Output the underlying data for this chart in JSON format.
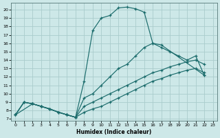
{
  "xlabel": "Humidex (Indice chaleur)",
  "xlim": [
    -0.5,
    23.5
  ],
  "ylim": [
    6.8,
    20.8
  ],
  "xticks": [
    0,
    1,
    2,
    3,
    4,
    5,
    6,
    7,
    8,
    9,
    10,
    11,
    12,
    13,
    14,
    15,
    16,
    17,
    18,
    19,
    20,
    21,
    22,
    23
  ],
  "yticks": [
    7,
    8,
    9,
    10,
    11,
    12,
    13,
    14,
    15,
    16,
    17,
    18,
    19,
    20
  ],
  "bg_color": "#cde8e8",
  "line_color": "#1a6b6b",
  "grid_color": "#aacccc",
  "curves": [
    {
      "x": [
        0,
        2,
        3,
        6,
        7,
        8,
        9,
        10,
        11,
        12,
        13,
        14,
        15,
        16,
        17,
        22
      ],
      "y": [
        7.5,
        8.8,
        8.5,
        7.5,
        7.2,
        11.5,
        17.5,
        19.0,
        19.3,
        20.2,
        20.3,
        20.1,
        19.7,
        16.0,
        15.8,
        12.2
      ]
    },
    {
      "x": [
        0,
        1,
        2,
        3,
        4,
        5,
        6,
        7,
        8,
        9,
        10,
        11,
        12,
        13,
        14,
        15,
        16,
        17,
        18,
        19,
        20,
        21,
        22
      ],
      "y": [
        7.5,
        9.0,
        8.8,
        8.5,
        8.2,
        7.8,
        7.5,
        7.2,
        9.5,
        10.0,
        11.0,
        12.0,
        13.0,
        13.5,
        14.5,
        15.5,
        16.0,
        15.5,
        15.0,
        14.5,
        14.0,
        14.5,
        12.2
      ]
    },
    {
      "x": [
        0,
        1,
        2,
        3,
        4,
        5,
        6,
        7,
        8,
        9,
        10,
        11,
        12,
        13,
        14,
        15,
        16,
        17,
        18,
        19,
        20,
        21,
        22
      ],
      "y": [
        7.5,
        9.0,
        8.8,
        8.5,
        8.2,
        7.8,
        7.5,
        7.2,
        8.5,
        9.0,
        9.5,
        10.0,
        10.5,
        11.0,
        11.5,
        12.0,
        12.5,
        12.8,
        13.2,
        13.5,
        13.8,
        14.0,
        13.5
      ]
    },
    {
      "x": [
        0,
        1,
        2,
        3,
        4,
        5,
        6,
        7,
        8,
        9,
        10,
        11,
        12,
        13,
        14,
        15,
        16,
        17,
        18,
        19,
        20,
        21,
        22
      ],
      "y": [
        7.5,
        9.0,
        8.8,
        8.5,
        8.2,
        7.8,
        7.5,
        7.2,
        7.8,
        8.2,
        8.5,
        9.0,
        9.5,
        10.0,
        10.5,
        11.0,
        11.5,
        11.8,
        12.2,
        12.5,
        12.8,
        13.0,
        12.5
      ]
    }
  ]
}
